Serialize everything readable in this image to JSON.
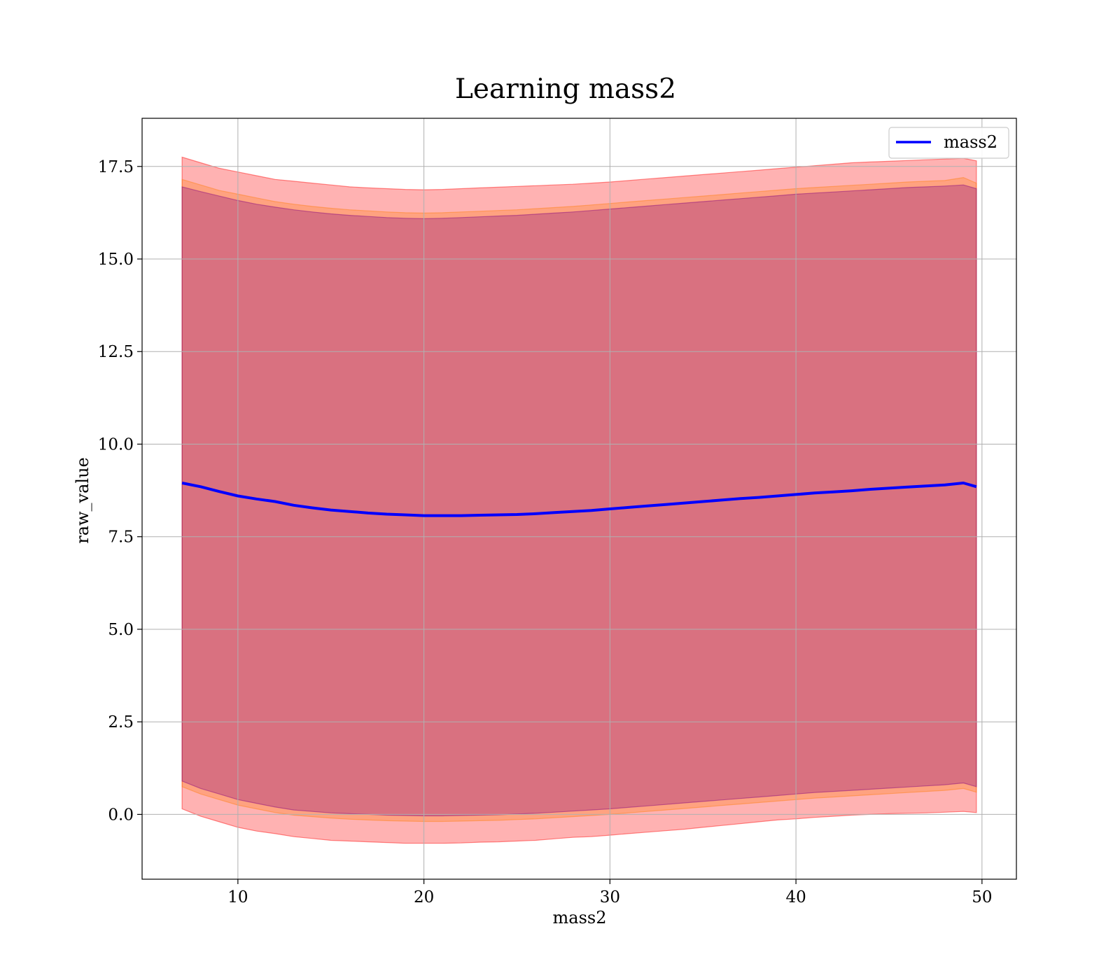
{
  "chart_data": {
    "type": "area",
    "title": "Learning mass2",
    "xlabel": "mass2",
    "ylabel": "raw_value",
    "xlim": [
      4.85,
      51.85
    ],
    "ylim": [
      -1.75,
      18.8
    ],
    "xticks": [
      10,
      20,
      30,
      40,
      50
    ],
    "yticks": [
      0.0,
      2.5,
      5.0,
      7.5,
      10.0,
      12.5,
      15.0,
      17.5
    ],
    "ytick_labels": [
      "0.0",
      "2.5",
      "5.0",
      "7.5",
      "10.0",
      "12.5",
      "15.0",
      "17.5"
    ],
    "grid": true,
    "legend": {
      "position": "top-right",
      "entries": [
        "mass2"
      ]
    },
    "colors": {
      "line": "#0000ff",
      "band_outer": "#ff0000",
      "band_middle": "#ff7f0e",
      "band_inner": "#800080",
      "grid": "#b0b0b0"
    },
    "x": [
      7.0,
      8,
      9,
      10,
      11,
      12,
      13,
      14,
      15,
      16,
      17,
      18,
      19,
      20,
      21,
      22,
      23,
      24,
      25,
      26,
      27,
      28,
      29,
      30,
      31,
      32,
      33,
      34,
      35,
      36,
      37,
      38,
      39,
      40,
      41,
      42,
      43,
      44,
      45,
      46,
      47,
      48,
      49,
      49.7
    ],
    "series": [
      {
        "name": "mass2",
        "values": [
          8.95,
          8.85,
          8.72,
          8.6,
          8.52,
          8.45,
          8.35,
          8.28,
          8.22,
          8.18,
          8.14,
          8.11,
          8.09,
          8.07,
          8.07,
          8.07,
          8.08,
          8.09,
          8.1,
          8.12,
          8.15,
          8.18,
          8.21,
          8.25,
          8.29,
          8.33,
          8.37,
          8.41,
          8.45,
          8.49,
          8.53,
          8.56,
          8.6,
          8.64,
          8.68,
          8.71,
          8.74,
          8.78,
          8.81,
          8.84,
          8.87,
          8.9,
          8.95,
          8.85
        ]
      }
    ],
    "bands": [
      {
        "lower": [
          0.15,
          -0.05,
          -0.2,
          -0.35,
          -0.45,
          -0.52,
          -0.6,
          -0.65,
          -0.7,
          -0.72,
          -0.74,
          -0.76,
          -0.78,
          -0.78,
          -0.78,
          -0.77,
          -0.75,
          -0.74,
          -0.72,
          -0.7,
          -0.66,
          -0.62,
          -0.6,
          -0.56,
          -0.52,
          -0.48,
          -0.44,
          -0.4,
          -0.35,
          -0.3,
          -0.25,
          -0.2,
          -0.15,
          -0.12,
          -0.08,
          -0.05,
          -0.02,
          0.0,
          0.02,
          0.03,
          0.04,
          0.06,
          0.08,
          0.05
        ],
        "upper": [
          17.75,
          17.6,
          17.45,
          17.35,
          17.25,
          17.15,
          17.1,
          17.05,
          17.0,
          16.95,
          16.92,
          16.9,
          16.88,
          16.87,
          16.88,
          16.9,
          16.92,
          16.94,
          16.96,
          16.98,
          17.0,
          17.02,
          17.05,
          17.08,
          17.12,
          17.16,
          17.2,
          17.24,
          17.28,
          17.32,
          17.36,
          17.4,
          17.44,
          17.48,
          17.52,
          17.56,
          17.6,
          17.62,
          17.64,
          17.66,
          17.68,
          17.7,
          17.72,
          17.65
        ]
      },
      {
        "lower": [
          0.75,
          0.55,
          0.4,
          0.25,
          0.15,
          0.05,
          -0.02,
          -0.06,
          -0.1,
          -0.13,
          -0.15,
          -0.17,
          -0.18,
          -0.19,
          -0.19,
          -0.18,
          -0.17,
          -0.16,
          -0.14,
          -0.12,
          -0.09,
          -0.06,
          -0.03,
          0.0,
          0.04,
          0.08,
          0.12,
          0.16,
          0.2,
          0.24,
          0.28,
          0.32,
          0.36,
          0.4,
          0.44,
          0.47,
          0.5,
          0.53,
          0.56,
          0.59,
          0.62,
          0.65,
          0.7,
          0.6
        ],
        "upper": [
          17.15,
          17.0,
          16.85,
          16.75,
          16.65,
          16.55,
          16.48,
          16.42,
          16.37,
          16.33,
          16.3,
          16.27,
          16.25,
          16.24,
          16.25,
          16.27,
          16.29,
          16.31,
          16.33,
          16.36,
          16.39,
          16.42,
          16.46,
          16.5,
          16.54,
          16.58,
          16.62,
          16.66,
          16.7,
          16.74,
          16.78,
          16.82,
          16.86,
          16.9,
          16.93,
          16.96,
          16.99,
          17.02,
          17.05,
          17.08,
          17.1,
          17.12,
          17.2,
          17.05
        ]
      },
      {
        "lower": [
          0.9,
          0.7,
          0.55,
          0.4,
          0.3,
          0.2,
          0.12,
          0.08,
          0.04,
          0.02,
          0.0,
          -0.02,
          -0.03,
          -0.04,
          -0.04,
          -0.03,
          -0.02,
          -0.01,
          0.01,
          0.03,
          0.06,
          0.09,
          0.12,
          0.15,
          0.19,
          0.23,
          0.27,
          0.31,
          0.35,
          0.39,
          0.43,
          0.47,
          0.51,
          0.55,
          0.59,
          0.62,
          0.65,
          0.68,
          0.71,
          0.74,
          0.77,
          0.8,
          0.85,
          0.75
        ],
        "upper": [
          16.95,
          16.82,
          16.7,
          16.58,
          16.48,
          16.4,
          16.33,
          16.27,
          16.22,
          16.18,
          16.15,
          16.12,
          16.1,
          16.09,
          16.1,
          16.12,
          16.14,
          16.16,
          16.18,
          16.21,
          16.24,
          16.27,
          16.31,
          16.35,
          16.39,
          16.43,
          16.47,
          16.51,
          16.55,
          16.59,
          16.63,
          16.67,
          16.71,
          16.75,
          16.78,
          16.81,
          16.84,
          16.87,
          16.9,
          16.93,
          16.95,
          16.97,
          17.0,
          16.9
        ]
      }
    ]
  }
}
